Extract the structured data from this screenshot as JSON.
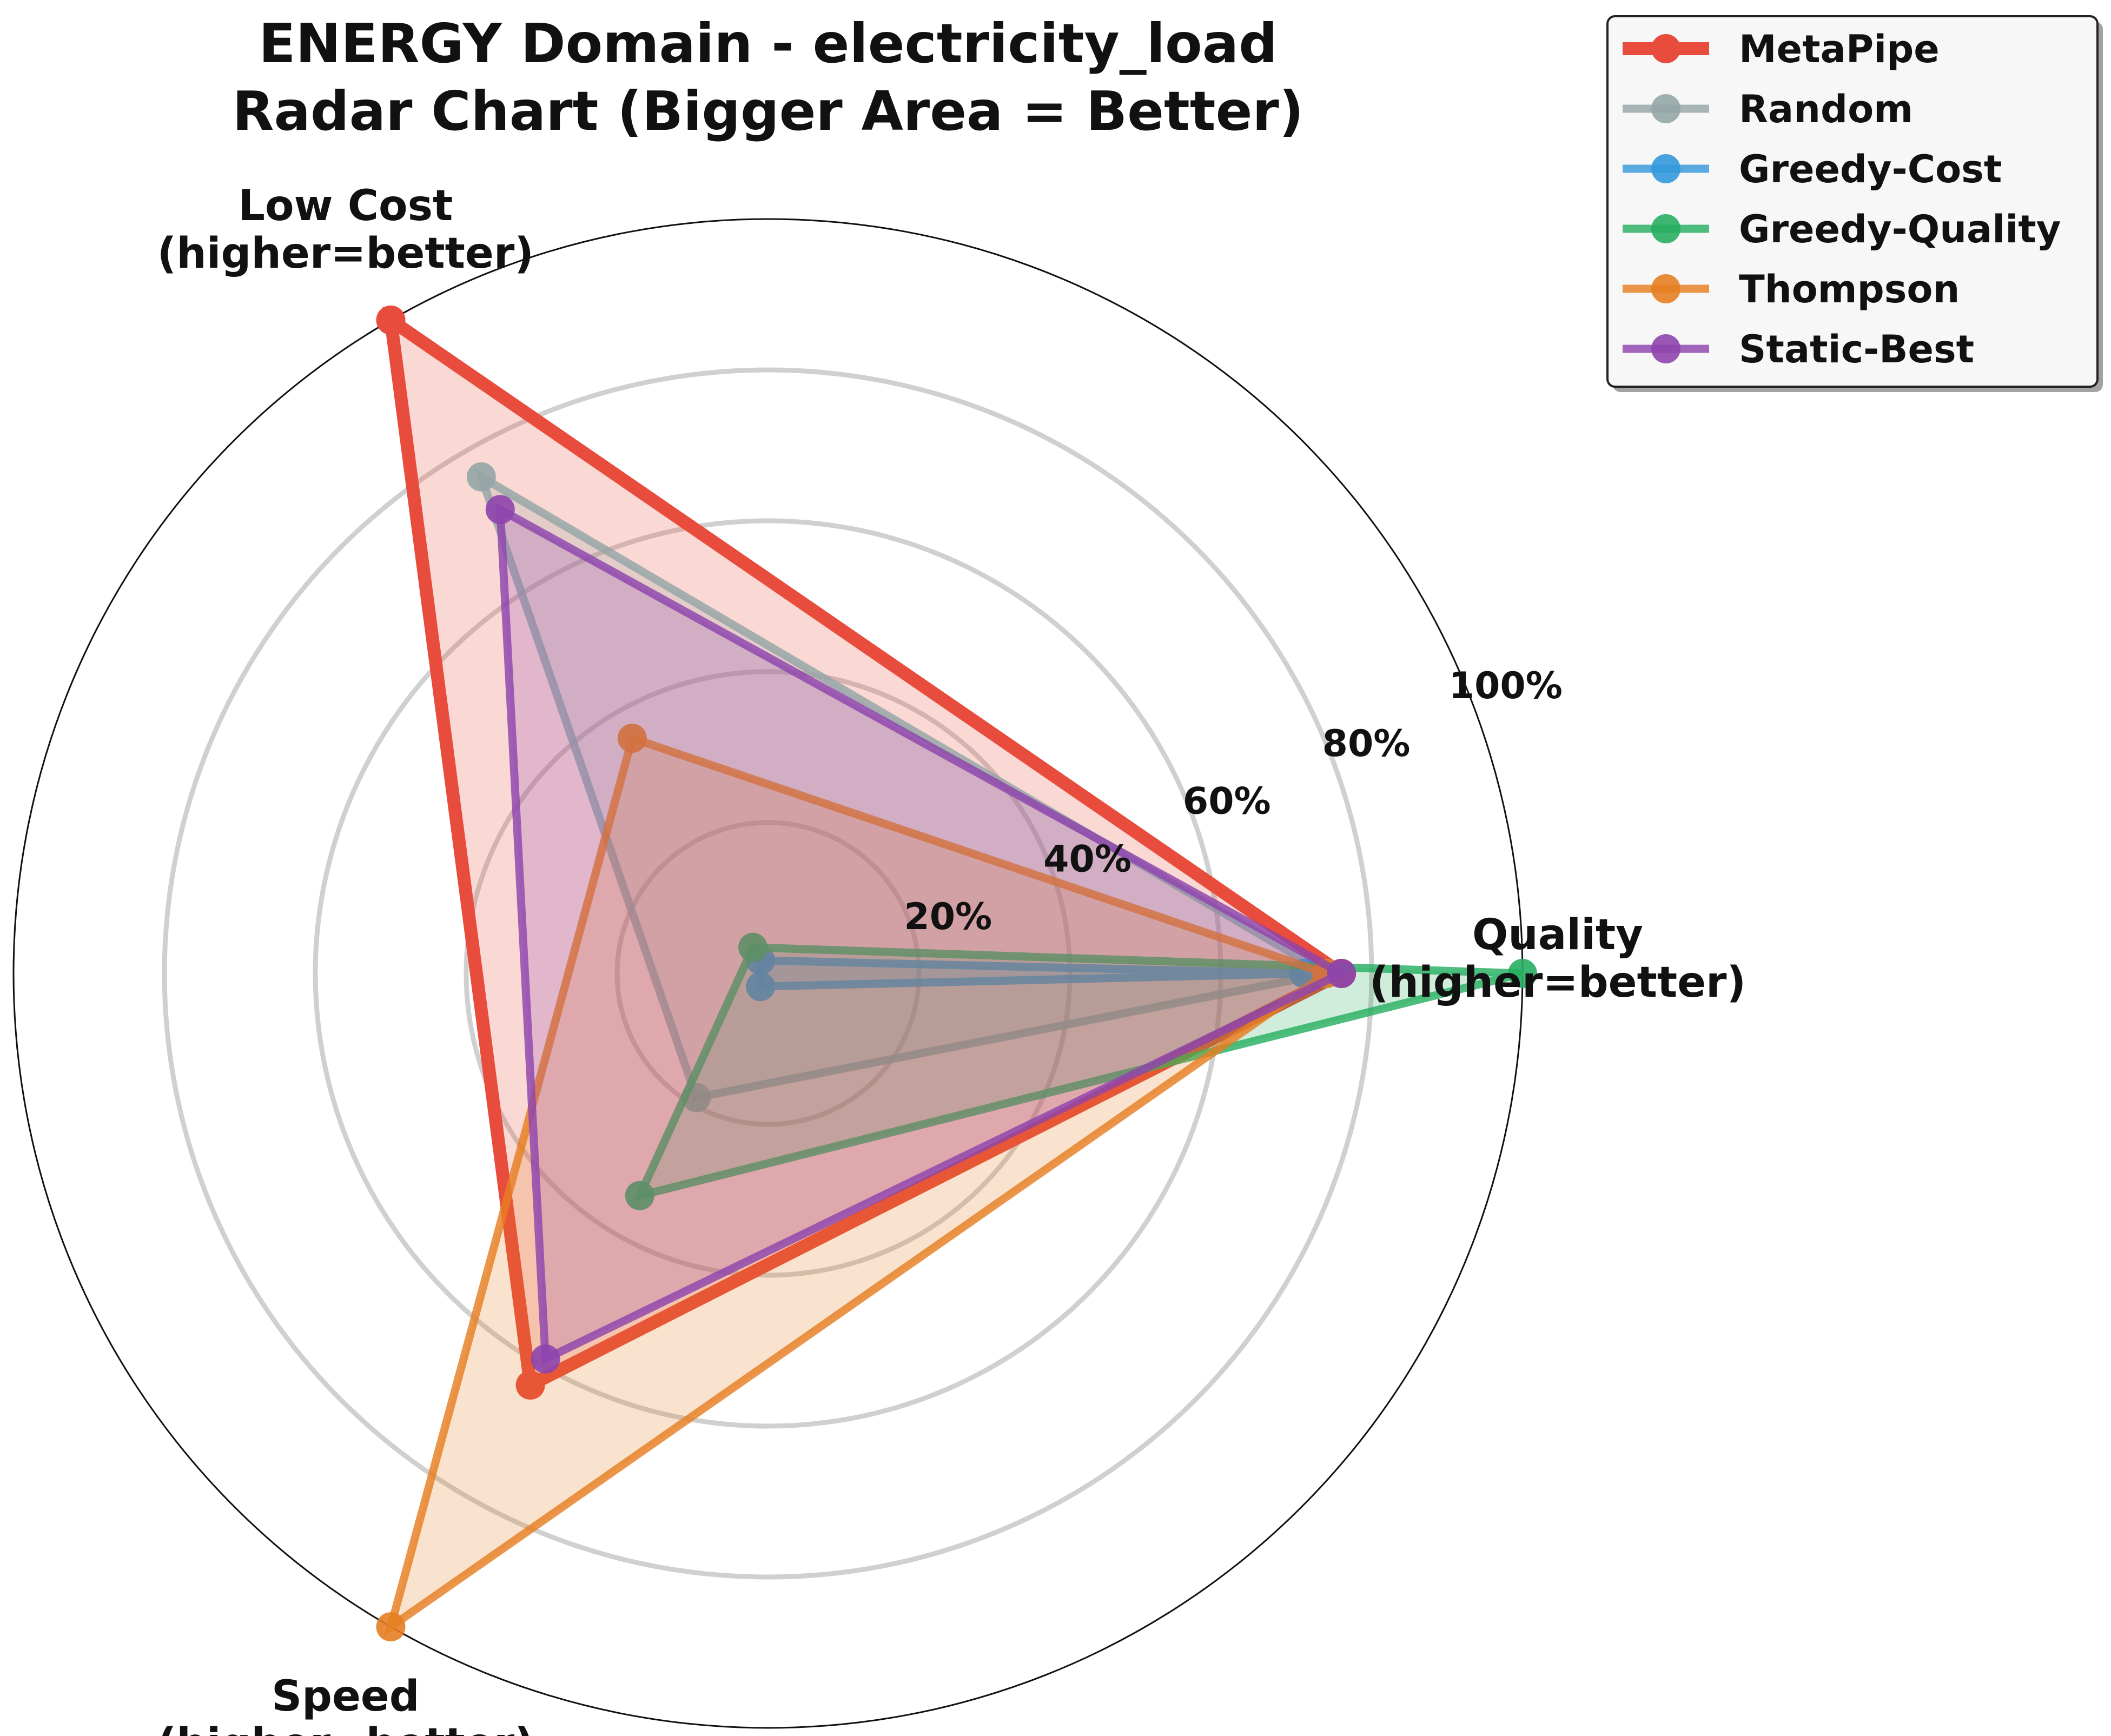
{
  "chart_data": {
    "type": "radar",
    "title": [
      "ENERGY Domain - electricity_load",
      "Radar Chart (Bigger Area = Better)"
    ],
    "axes": [
      {
        "lines": [
          "Quality",
          "(higher=better)"
        ]
      },
      {
        "lines": [
          "Low Cost",
          "(higher=better)"
        ]
      },
      {
        "lines": [
          "Speed",
          "(higher=better)"
        ]
      }
    ],
    "radial_ticks": [
      {
        "value": 20,
        "label": "20%"
      },
      {
        "value": 40,
        "label": "40%"
      },
      {
        "value": 60,
        "label": "60%"
      },
      {
        "value": 80,
        "label": "80%"
      },
      {
        "value": 100,
        "label": "100%"
      }
    ],
    "rlim": [
      0,
      100
    ],
    "grid": true,
    "legend_position": "top-right",
    "series": [
      {
        "name": "MetaPipe",
        "color": "#e74c3c",
        "values": [
          76,
          100,
          63
        ]
      },
      {
        "name": "Random",
        "color": "#95a5a6",
        "values": [
          74,
          76,
          19
        ]
      },
      {
        "name": "Greedy-Cost",
        "color": "#3498db",
        "values": [
          71,
          2,
          2
        ]
      },
      {
        "name": "Greedy-Quality",
        "color": "#27ae60",
        "values": [
          100,
          4,
          34
        ]
      },
      {
        "name": "Thompson",
        "color": "#e67e22",
        "values": [
          74,
          36,
          100
        ]
      },
      {
        "name": "Static-Best",
        "color": "#8e44ad",
        "values": [
          76,
          71,
          59
        ]
      }
    ]
  }
}
